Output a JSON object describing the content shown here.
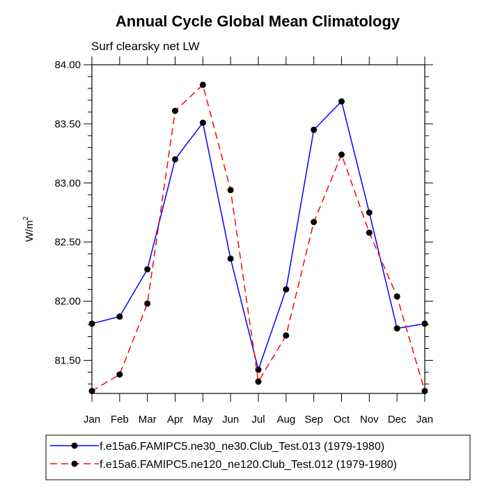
{
  "chart_data": {
    "type": "line",
    "title": "Annual Cycle Global Mean Climatology",
    "subtitle": "Surf clearsky net LW",
    "xlabel": "",
    "ylabel": "W/m",
    "ylabel_superscript": "2",
    "categories": [
      "Jan",
      "Feb",
      "Mar",
      "Apr",
      "May",
      "Jun",
      "Jul",
      "Aug",
      "Sep",
      "Oct",
      "Nov",
      "Dec",
      "Jan"
    ],
    "ylim": [
      81.22,
      84.0
    ],
    "yticks": [
      81.5,
      82.0,
      82.5,
      83.0,
      83.5,
      84.0
    ],
    "ytick_labels": [
      "81.50",
      "82.00",
      "82.50",
      "83.00",
      "83.50",
      "84.00"
    ],
    "series": [
      {
        "name": "f.e15a6.FAMIPC5.ne30_ne30.Club_Test.013 (1979-1980)",
        "color": "#0000ff",
        "dash": "solid",
        "values": [
          81.81,
          81.87,
          82.27,
          83.2,
          83.51,
          82.36,
          81.42,
          82.1,
          83.45,
          83.69,
          82.75,
          81.77,
          81.81
        ]
      },
      {
        "name": "f.e15a6.FAMIPC5.ne120_ne120.Club_Test.012 (1979-1980)",
        "color": "#ff0000",
        "dash": "dashed",
        "values": [
          81.24,
          81.38,
          81.98,
          83.61,
          83.83,
          82.94,
          81.32,
          81.71,
          82.67,
          83.24,
          82.58,
          82.04,
          81.24
        ]
      }
    ],
    "legend_position": "bottom"
  }
}
